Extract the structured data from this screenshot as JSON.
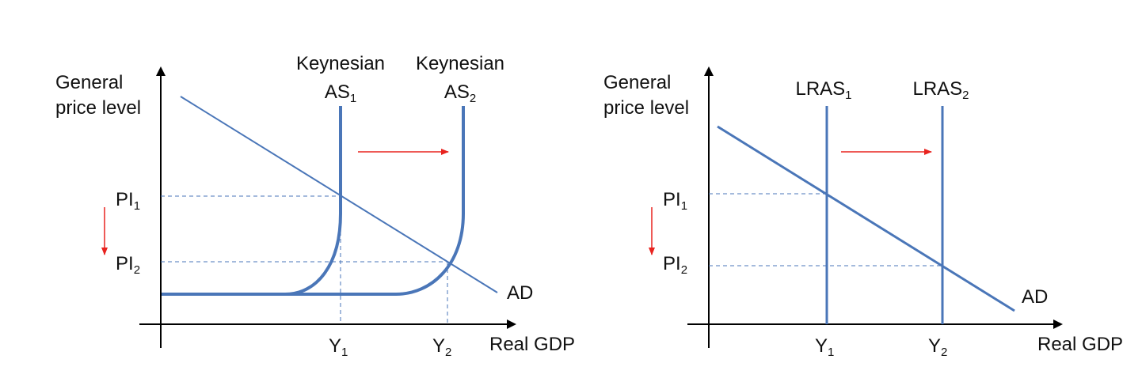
{
  "colors": {
    "curve": "#4a76b8",
    "axis": "#000000",
    "guide": "#4a76b8",
    "arrow": "#e8231f"
  },
  "left_diagram": {
    "y_axis_label": [
      "General",
      "price level"
    ],
    "x_axis_label": "Real GDP",
    "as1_label": {
      "line1": "Keynesian",
      "base": "AS",
      "sub": "1"
    },
    "as2_label": {
      "line1": "Keynesian",
      "base": "AS",
      "sub": "2"
    },
    "pl1": {
      "base": "PI",
      "sub": "1"
    },
    "pl2": {
      "base": "PI",
      "sub": "2"
    },
    "y1": {
      "base": "Y",
      "sub": "1"
    },
    "y2": {
      "base": "Y",
      "sub": "2"
    },
    "ad_label": "AD",
    "shift_arrow": "right",
    "price_arrow": "down"
  },
  "right_diagram": {
    "y_axis_label": [
      "General",
      "price level"
    ],
    "x_axis_label": "Real GDP",
    "lras1_label": {
      "base": "LRAS",
      "sub": "1"
    },
    "lras2_label": {
      "base": "LRAS",
      "sub": "2"
    },
    "pl1": {
      "base": "PI",
      "sub": "1"
    },
    "pl2": {
      "base": "PI",
      "sub": "2"
    },
    "y1": {
      "base": "Y",
      "sub": "1"
    },
    "y2": {
      "base": "Y",
      "sub": "2"
    },
    "ad_label": "AD",
    "shift_arrow": "right",
    "price_arrow": "down"
  }
}
